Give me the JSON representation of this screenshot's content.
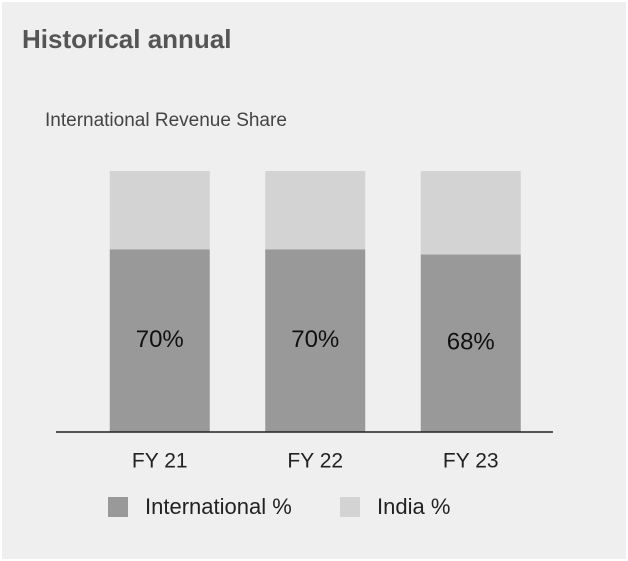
{
  "chart_data": {
    "type": "stacked_bar",
    "title": "Historical annual",
    "subtitle": "International Revenue Share",
    "categories": [
      "FY 21",
      "FY 22",
      "FY 23"
    ],
    "series": [
      {
        "name": "International %",
        "color": "#999999",
        "values": [
          70,
          70,
          68
        ],
        "value_labels": [
          "70%",
          "70%",
          "68%"
        ]
      },
      {
        "name": "India %",
        "color": "#d3d3d3",
        "values": [
          30,
          30,
          32
        ]
      }
    ],
    "ylim": [
      0,
      100
    ],
    "legend": "bottom"
  }
}
